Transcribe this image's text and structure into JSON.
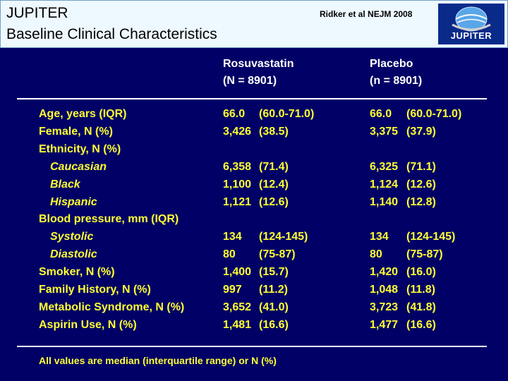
{
  "header": {
    "title_line1": "JUPITER",
    "title_line2": "Baseline Clinical Characteristics",
    "citation": "Ridker et al NEJM 2008",
    "logo_text": "JUPITER"
  },
  "columns": {
    "rosuvastatin": {
      "name": "Rosuvastatin",
      "n": "(N = 8901)"
    },
    "placebo": {
      "name": "Placebo",
      "n": "(n = 8901)"
    }
  },
  "rows": [
    {
      "label": "Age, years (IQR)",
      "sub": false,
      "r1": "66.0",
      "r2": "(60.0-71.0)",
      "p1": "66.0",
      "p2": "(60.0-71.0)"
    },
    {
      "label": "Female, N (%)",
      "sub": false,
      "r1": "3,426",
      "r2": "(38.5)",
      "p1": "3,375",
      "p2": "(37.9)"
    },
    {
      "label": "Ethnicity, N (%)",
      "sub": false,
      "r1": "",
      "r2": "",
      "p1": "",
      "p2": ""
    },
    {
      "label": "Caucasian",
      "sub": true,
      "r1": "6,358",
      "r2": "(71.4)",
      "p1": "6,325",
      "p2": "(71.1)"
    },
    {
      "label": "Black",
      "sub": true,
      "r1": "1,100",
      "r2": "(12.4)",
      "p1": "1,124",
      "p2": "(12.6)"
    },
    {
      "label": "Hispanic",
      "sub": true,
      "r1": "1,121",
      "r2": "(12.6)",
      "p1": "1,140",
      "p2": "(12.8)"
    },
    {
      "label": "Blood pressure, mm (IQR)",
      "sub": false,
      "r1": "",
      "r2": "",
      "p1": "",
      "p2": ""
    },
    {
      "label": "Systolic",
      "sub": true,
      "r1": "134",
      "r2": "(124-145)",
      "p1": "134",
      "p2": "(124-145)"
    },
    {
      "label": "Diastolic",
      "sub": true,
      "r1": "80",
      "r2": "(75-87)",
      "p1": "80",
      "p2": "(75-87)"
    },
    {
      "label": "Smoker, N (%)",
      "sub": false,
      "r1": "1,400",
      "r2": "(15.7)",
      "p1": "1,420",
      "p2": "(16.0)"
    },
    {
      "label": "Family History, N (%)",
      "sub": false,
      "r1": "997",
      "r2": "(11.2)",
      "p1": "1,048",
      "p2": "(11.8)"
    },
    {
      "label": "Metabolic Syndrome, N (%)",
      "sub": false,
      "r1": "3,652",
      "r2": "(41.0)",
      "p1": "3,723",
      "p2": "(41.8)"
    },
    {
      "label": "Aspirin Use, N (%)",
      "sub": false,
      "r1": "1,481",
      "r2": "(16.6)",
      "p1": "1,477",
      "p2": "(16.6)"
    }
  ],
  "footnote": "All values are median (interquartile range) or N (%)",
  "colors": {
    "background": "#000066",
    "text": "#ffff33",
    "header_bg": "#eef8ff"
  }
}
